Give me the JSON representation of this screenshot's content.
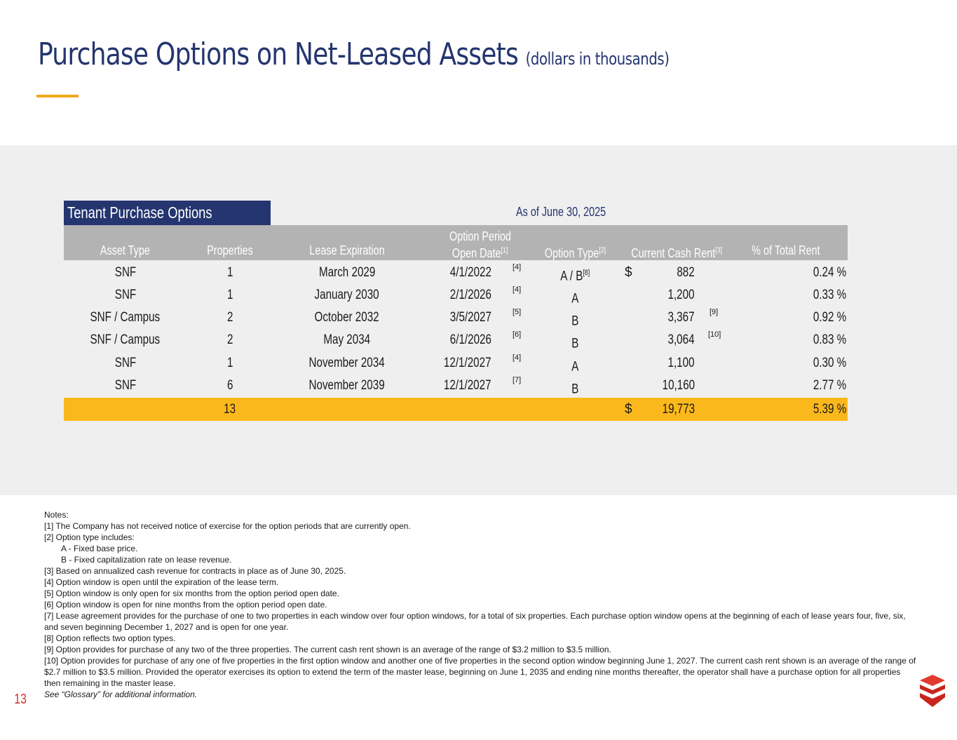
{
  "header": {
    "title": "Purchase Options on Net-Leased Assets",
    "subtitle": "(dollars in thousands)"
  },
  "table": {
    "title": "Tenant Purchase Options",
    "as_of": "As of June 30, 2025",
    "columns": {
      "asset_type": "Asset Type",
      "properties": "Properties",
      "lease_expiration": "Lease Expiration",
      "option_period_line1": "Option Period",
      "option_period_line2": "Open Date",
      "option_period_fn": "[1]",
      "option_type": "Option Type",
      "option_type_fn": "[2]",
      "cash_rent": "Current Cash Rent",
      "cash_rent_fn": "[3]",
      "pct_rent": "% of Total Rent"
    },
    "rows": [
      {
        "asset": "SNF",
        "props": "1",
        "lease": "March 2029",
        "open": "4/1/2022",
        "open_fn": "[4]",
        "type": "A / B",
        "type_fn": "[8]",
        "dollar": "$",
        "rent": "882",
        "rent_fn": "",
        "pct": "0.24 %"
      },
      {
        "asset": "SNF",
        "props": "1",
        "lease": "January 2030",
        "open": "2/1/2026",
        "open_fn": "[4]",
        "type": "A",
        "type_fn": "",
        "dollar": "",
        "rent": "1,200",
        "rent_fn": "",
        "pct": "0.33 %"
      },
      {
        "asset": "SNF / Campus",
        "props": "2",
        "lease": "October 2032",
        "open": "3/5/2027",
        "open_fn": "[5]",
        "type": "B",
        "type_fn": "",
        "dollar": "",
        "rent": "3,367",
        "rent_fn": "[9]",
        "pct": "0.92 %"
      },
      {
        "asset": "SNF / Campus",
        "props": "2",
        "lease": "May 2034",
        "open": "6/1/2026",
        "open_fn": "[6]",
        "type": "B",
        "type_fn": "",
        "dollar": "",
        "rent": "3,064",
        "rent_fn": "[10]",
        "pct": "0.83 %"
      },
      {
        "asset": "SNF",
        "props": "1",
        "lease": "November 2034",
        "open": "12/1/2027",
        "open_fn": "[4]",
        "type": "A",
        "type_fn": "",
        "dollar": "",
        "rent": "1,100",
        "rent_fn": "",
        "pct": "0.30 %"
      },
      {
        "asset": "SNF",
        "props": "6",
        "lease": "November 2039",
        "open": "12/1/2027",
        "open_fn": "[7]",
        "type": "B",
        "type_fn": "",
        "dollar": "",
        "rent": "10,160",
        "rent_fn": "",
        "pct": "2.77 %"
      }
    ],
    "total": {
      "props": "13",
      "dollar": "$",
      "rent": "19,773",
      "pct": "5.39 %"
    }
  },
  "notes": {
    "heading": "Notes:",
    "n1": "[1] The Company has not received notice of exercise for the option periods that are currently open.",
    "n2": "[2]  Option type includes:",
    "n2a": "A - Fixed base price.",
    "n2b": "B - Fixed capitalization rate on lease revenue.",
    "n3": "[3] Based on annualized cash revenue for contracts in place as of June 30, 2025.",
    "n4": "[4] Option window is open until the expiration of the lease term.",
    "n5": "[5] Option window is only open for six months from the option period open date.",
    "n6": "[6] Option window is open for nine months from the option period open date.",
    "n7": "[7] Lease agreement provides for the purchase of one to two properties in each window over four option windows, for a total of six properties.  Each purchase option window opens at the beginning of each of lease years four, five, six, and seven beginning December 1, 2027 and is open for one year.",
    "n8": "[8] Option reflects two option types.",
    "n9": "[9] Option provides for purchase of any two of the three properties. The current cash rent shown is an average of the range of $3.2 million to $3.5 million.",
    "n10": "[10] Option provides for purchase of any one of five properties in the first option window and another one of five properties in the second option window beginning June 1, 2027. The current cash rent shown is an average of the range of $2.7 million to $3.5 million. Provided the operator exercises its option to extend the term of the master lease, beginning on June 1, 2035 and ending nine months thereafter, the operator shall have a purchase option for all properties then remaining in the master lease.",
    "glossary": "See “Glossary” for additional information."
  },
  "footer": {
    "page_number": "13",
    "logo_icon": "chevron-stack-logo-icon",
    "accent_color": "#d32f2f"
  },
  "colors": {
    "navy": "#24356f",
    "gold": "#fbb81c",
    "header_gray": "#b3b3b3",
    "panel_gray": "#efefef"
  }
}
